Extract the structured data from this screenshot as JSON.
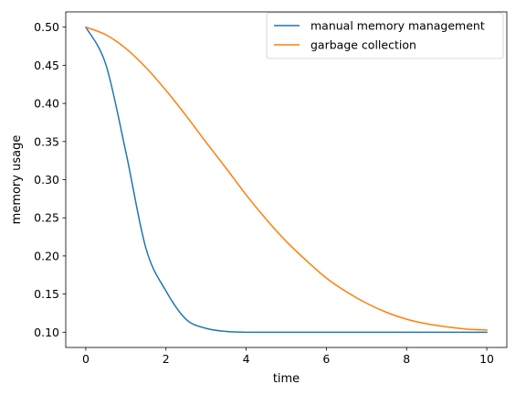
{
  "chart_data": {
    "type": "line",
    "xlabel": "time",
    "ylabel": "memory usage",
    "xlim": [
      -0.5,
      10.5
    ],
    "ylim": [
      0.08,
      0.52
    ],
    "xticks": [
      0,
      2,
      4,
      6,
      8,
      10
    ],
    "xtick_labels": [
      "0",
      "2",
      "4",
      "6",
      "8",
      "10"
    ],
    "yticks": [
      0.1,
      0.15,
      0.2,
      0.25,
      0.3,
      0.35,
      0.4,
      0.45,
      0.5
    ],
    "ytick_labels": [
      "0.10",
      "0.15",
      "0.20",
      "0.25",
      "0.30",
      "0.35",
      "0.40",
      "0.45",
      "0.50"
    ],
    "grid": false,
    "legend_position": "upper right",
    "x": [
      0,
      0.5,
      1,
      1.5,
      2,
      2.5,
      3,
      3.5,
      4,
      4.5,
      5,
      5.5,
      6,
      6.5,
      7,
      7.5,
      8,
      8.5,
      9,
      9.5,
      10
    ],
    "series": [
      {
        "name": "manual memory management",
        "color": "#1f77b4",
        "values": [
          0.5,
          0.451,
          0.336,
          0.21,
          0.154,
          0.117,
          0.105,
          0.101,
          0.1,
          0.1,
          0.1,
          0.1,
          0.1,
          0.1,
          0.1,
          0.1,
          0.1,
          0.1,
          0.1,
          0.1,
          0.1
        ]
      },
      {
        "name": "garbage collection",
        "color": "#ff7f0e",
        "values": [
          0.5,
          0.49,
          0.472,
          0.447,
          0.417,
          0.384,
          0.349,
          0.315,
          0.28,
          0.248,
          0.219,
          0.194,
          0.171,
          0.153,
          0.138,
          0.126,
          0.117,
          0.111,
          0.107,
          0.104,
          0.103
        ]
      }
    ]
  }
}
